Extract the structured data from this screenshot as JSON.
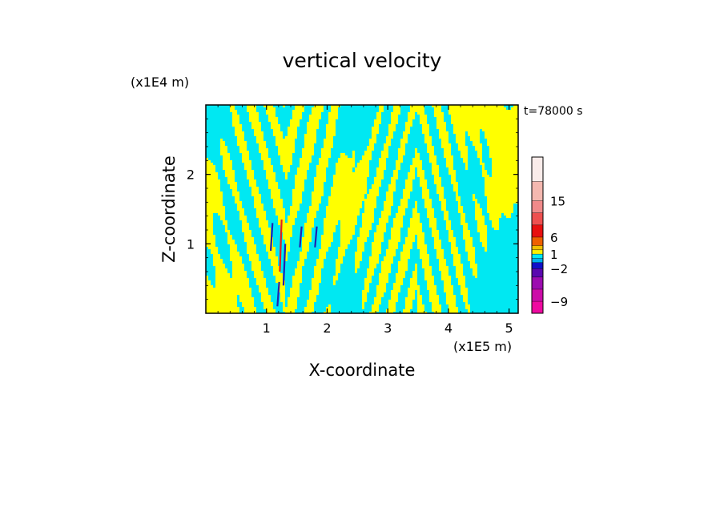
{
  "chart_data": {
    "type": "heatmap",
    "title": "vertical velocity",
    "xlabel": "X-coordinate",
    "ylabel": "Z-coordinate",
    "x_unit": "(x1E5 m)",
    "y_unit": "(x1E4 m)",
    "time_label": "t=78000 s",
    "xlim": [
      0,
      5.15
    ],
    "ylim": [
      0,
      3.0
    ],
    "x_ticks": [
      1,
      2,
      3,
      4,
      5
    ],
    "y_ticks": [
      1,
      2
    ],
    "x_tick_labels": [
      "1",
      "2",
      "3",
      "4",
      "5"
    ],
    "y_tick_labels": [
      "1",
      "2"
    ],
    "grid": false,
    "colorbar": {
      "levels": [
        -12,
        -9,
        -6,
        -4,
        -2,
        -1,
        0,
        1,
        2,
        4,
        6,
        9,
        12,
        15,
        18,
        21
      ],
      "colors": [
        "#ee0aa0",
        "#cc0ca8",
        "#9c0cb0",
        "#5a08b0",
        "#1010c8",
        "#00b0ee",
        "#00e8f2",
        "#f8f000",
        "#f0c000",
        "#ee6000",
        "#e81010",
        "#ee5050",
        "#f08a8a",
        "#f4b8b0",
        "#faecea"
      ],
      "tick_labels": [
        "15",
        "6",
        "1",
        "−2",
        "−9"
      ],
      "tick_values": [
        15,
        6,
        1,
        -2,
        -9
      ]
    },
    "field_colors": {
      "positive": "#ffff00",
      "negative": "#00e8f2",
      "strong_negative": "#2020b0",
      "strong_positive": "#e02020"
    }
  }
}
